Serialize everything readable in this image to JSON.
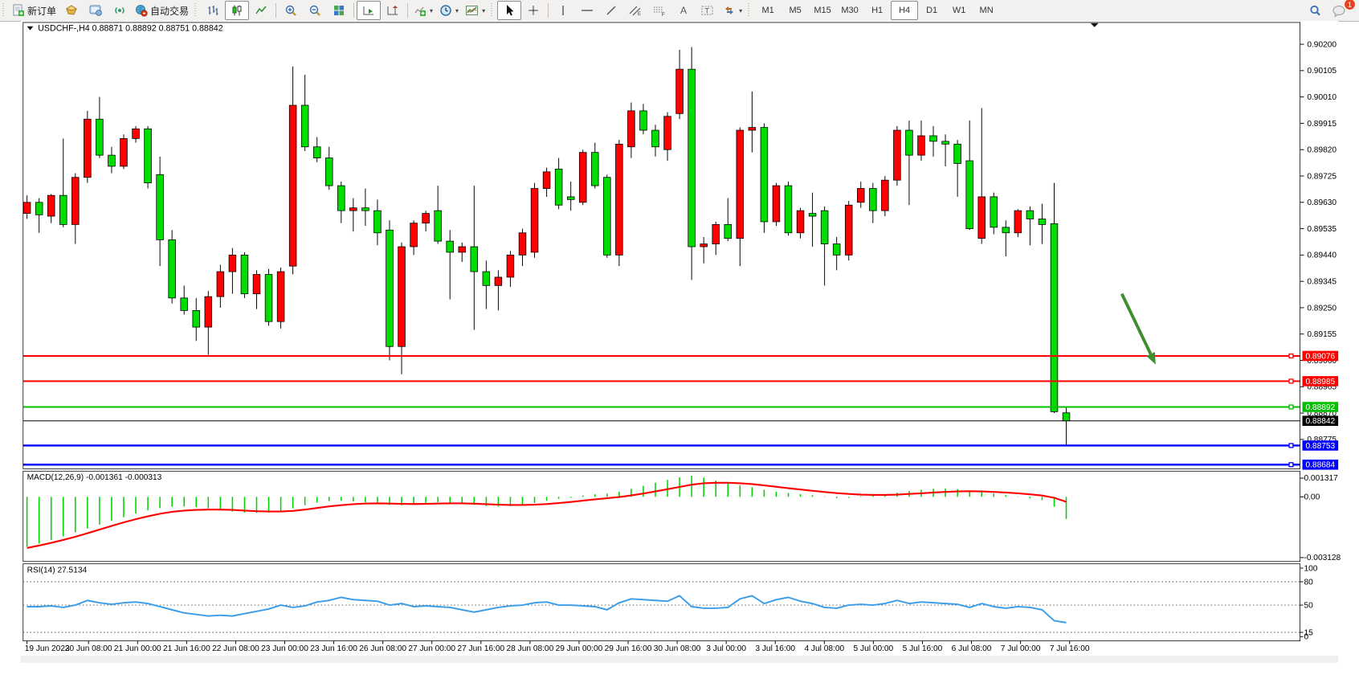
{
  "toolbar": {
    "new_order_label": "新订单",
    "auto_trading_label": "自动交易",
    "timeframes": [
      "M1",
      "M5",
      "M15",
      "M30",
      "H1",
      "H4",
      "D1",
      "W1",
      "MN"
    ],
    "selected_timeframe": "H4",
    "badge_count": "1"
  },
  "chart": {
    "symbol_period": "USDCHF-,H4",
    "ohlc_text": "0.88871 0.88892 0.88751 0.88842"
  },
  "chart_data": {
    "type": "candlestick",
    "symbol": "USDCHF",
    "period": "H4",
    "quote": {
      "open": "0.88871",
      "high": "0.88892",
      "low": "0.88751",
      "close": "0.88842"
    },
    "price_axis": {
      "tick_labels": [
        "0.90200",
        "0.90105",
        "0.90010",
        "0.89915",
        "0.89820",
        "0.89725",
        "0.89630",
        "0.89535",
        "0.89440",
        "0.89345",
        "0.89250",
        "0.89155",
        "0.89060",
        "0.88965",
        "0.88870",
        "0.88775"
      ],
      "tick_values": [
        0.902,
        0.90105,
        0.9001,
        0.89915,
        0.8982,
        0.89725,
        0.8963,
        0.89535,
        0.8944,
        0.89345,
        0.8925,
        0.89155,
        0.8906,
        0.88965,
        0.8887,
        0.88775
      ]
    },
    "date_labels": [
      "19 Jun 2023",
      "20 Jun 08:00",
      "21 Jun 00:00",
      "21 Jun 16:00",
      "22 Jun 08:00",
      "23 Jun 00:00",
      "23 Jun 16:00",
      "26 Jun 08:00",
      "27 Jun 00:00",
      "27 Jun 16:00",
      "28 Jun 08:00",
      "29 Jun 00:00",
      "29 Jun 16:00",
      "30 Jun 08:00",
      "3 Jul 00:00",
      "3 Jul 16:00",
      "4 Jul 08:00",
      "5 Jul 00:00",
      "5 Jul 16:00",
      "6 Jul 08:00",
      "7 Jul 00:00",
      "7 Jul 16:00"
    ],
    "colors": {
      "up": "#FF0000",
      "down": "#00DD00",
      "wick": "#000000",
      "macd_bar": "#00D400",
      "macd_signal": "#FF0000",
      "rsi_line": "#3B9DE8",
      "arrow": "#3E8E2E"
    },
    "candles": [
      [
        0.8959,
        0.89655,
        0.8957,
        0.8963
      ],
      [
        0.8963,
        0.89645,
        0.8952,
        0.89585
      ],
      [
        0.8958,
        0.8966,
        0.89555,
        0.89655
      ],
      [
        0.89655,
        0.8986,
        0.8954,
        0.8955
      ],
      [
        0.8955,
        0.89735,
        0.8948,
        0.8972
      ],
      [
        0.8972,
        0.8996,
        0.897,
        0.8993
      ],
      [
        0.8993,
        0.9001,
        0.8979,
        0.898
      ],
      [
        0.898,
        0.8983,
        0.89735,
        0.8976
      ],
      [
        0.8976,
        0.89875,
        0.8975,
        0.8986
      ],
      [
        0.8986,
        0.89905,
        0.89845,
        0.89895
      ],
      [
        0.89895,
        0.89905,
        0.8968,
        0.897
      ],
      [
        0.8973,
        0.89795,
        0.894,
        0.89495
      ],
      [
        0.89495,
        0.8953,
        0.89265,
        0.89285
      ],
      [
        0.89285,
        0.8933,
        0.89225,
        0.8924
      ],
      [
        0.8924,
        0.89285,
        0.8913,
        0.8918
      ],
      [
        0.8918,
        0.8931,
        0.8908,
        0.8929
      ],
      [
        0.8929,
        0.89405,
        0.8925,
        0.8938
      ],
      [
        0.8938,
        0.89465,
        0.893,
        0.8944
      ],
      [
        0.8944,
        0.8945,
        0.89285,
        0.893
      ],
      [
        0.893,
        0.89385,
        0.89245,
        0.8937
      ],
      [
        0.8937,
        0.8939,
        0.89185,
        0.892
      ],
      [
        0.892,
        0.89395,
        0.89175,
        0.8938
      ],
      [
        0.894,
        0.9012,
        0.8937,
        0.8998
      ],
      [
        0.8998,
        0.9009,
        0.89815,
        0.8983
      ],
      [
        0.8983,
        0.89865,
        0.89775,
        0.8979
      ],
      [
        0.8979,
        0.8983,
        0.89675,
        0.8969
      ],
      [
        0.8969,
        0.89705,
        0.89555,
        0.896
      ],
      [
        0.896,
        0.89645,
        0.89525,
        0.8961
      ],
      [
        0.8961,
        0.8968,
        0.89545,
        0.896
      ],
      [
        0.896,
        0.8964,
        0.89475,
        0.8952
      ],
      [
        0.8953,
        0.89565,
        0.8906,
        0.8911
      ],
      [
        0.8911,
        0.89485,
        0.8901,
        0.8947
      ],
      [
        0.8947,
        0.89565,
        0.8944,
        0.89555
      ],
      [
        0.89555,
        0.896,
        0.89525,
        0.8959
      ],
      [
        0.896,
        0.8969,
        0.8948,
        0.8949
      ],
      [
        0.8949,
        0.8953,
        0.8928,
        0.8945
      ],
      [
        0.8945,
        0.89485,
        0.89415,
        0.8947
      ],
      [
        0.8947,
        0.8969,
        0.8917,
        0.8938
      ],
      [
        0.8938,
        0.8942,
        0.89245,
        0.8933
      ],
      [
        0.8933,
        0.89385,
        0.8924,
        0.8936
      ],
      [
        0.8936,
        0.89455,
        0.89325,
        0.8944
      ],
      [
        0.8944,
        0.89535,
        0.894,
        0.8952
      ],
      [
        0.8945,
        0.897,
        0.8943,
        0.8968
      ],
      [
        0.8968,
        0.89755,
        0.8965,
        0.8974
      ],
      [
        0.8975,
        0.8979,
        0.89605,
        0.8962
      ],
      [
        0.8965,
        0.89705,
        0.896,
        0.8964
      ],
      [
        0.8963,
        0.8982,
        0.8962,
        0.8981
      ],
      [
        0.8981,
        0.89845,
        0.8968,
        0.8969
      ],
      [
        0.8972,
        0.8973,
        0.8943,
        0.8944
      ],
      [
        0.8944,
        0.89855,
        0.894,
        0.8984
      ],
      [
        0.8983,
        0.8999,
        0.8979,
        0.8996
      ],
      [
        0.8996,
        0.89985,
        0.89875,
        0.8989
      ],
      [
        0.8989,
        0.8991,
        0.89795,
        0.8983
      ],
      [
        0.8982,
        0.89955,
        0.8978,
        0.8994
      ],
      [
        0.8995,
        0.9018,
        0.8993,
        0.9011
      ],
      [
        0.9011,
        0.9019,
        0.8935,
        0.8947
      ],
      [
        0.8947,
        0.89505,
        0.8941,
        0.8948
      ],
      [
        0.8948,
        0.8956,
        0.8944,
        0.8955
      ],
      [
        0.8955,
        0.89645,
        0.8949,
        0.895
      ],
      [
        0.895,
        0.899,
        0.894,
        0.8989
      ],
      [
        0.8989,
        0.9003,
        0.8981,
        0.899
      ],
      [
        0.899,
        0.89915,
        0.8952,
        0.8956
      ],
      [
        0.8956,
        0.897,
        0.89545,
        0.8969
      ],
      [
        0.8969,
        0.89705,
        0.8951,
        0.8952
      ],
      [
        0.8952,
        0.8961,
        0.895,
        0.896
      ],
      [
        0.8959,
        0.89665,
        0.8947,
        0.8958
      ],
      [
        0.896,
        0.89615,
        0.8933,
        0.8948
      ],
      [
        0.8948,
        0.89505,
        0.89385,
        0.8944
      ],
      [
        0.8944,
        0.89635,
        0.8942,
        0.8962
      ],
      [
        0.8963,
        0.89705,
        0.8961,
        0.8968
      ],
      [
        0.8968,
        0.897,
        0.89555,
        0.896
      ],
      [
        0.896,
        0.89725,
        0.8958,
        0.8971
      ],
      [
        0.8971,
        0.89905,
        0.8969,
        0.8989
      ],
      [
        0.8989,
        0.89925,
        0.8962,
        0.898
      ],
      [
        0.898,
        0.89925,
        0.8978,
        0.8987
      ],
      [
        0.8987,
        0.89905,
        0.89795,
        0.8985
      ],
      [
        0.8985,
        0.89875,
        0.8976,
        0.8984
      ],
      [
        0.8984,
        0.89855,
        0.8965,
        0.8977
      ],
      [
        0.8978,
        0.89925,
        0.8953,
        0.89535
      ],
      [
        0.895,
        0.8997,
        0.8948,
        0.8965
      ],
      [
        0.8965,
        0.89665,
        0.89515,
        0.8954
      ],
      [
        0.8954,
        0.89565,
        0.89435,
        0.8952
      ],
      [
        0.8952,
        0.89605,
        0.89505,
        0.896
      ],
      [
        0.896,
        0.89615,
        0.89475,
        0.8957
      ],
      [
        0.8957,
        0.89625,
        0.8948,
        0.8955
      ],
      [
        0.89553,
        0.897,
        0.8887,
        0.88875
      ],
      [
        0.88871,
        0.88892,
        0.88751,
        0.88842
      ]
    ],
    "hlines": [
      {
        "price": 0.89076,
        "label": "0.89076",
        "color": "#FF0000",
        "width": 2,
        "handle": true
      },
      {
        "price": 0.88985,
        "label": "0.88985",
        "color": "#FF0000",
        "width": 2,
        "handle": true
      },
      {
        "price": 0.88892,
        "label": "0.88892",
        "color": "#00C000",
        "width": 2,
        "handle": true
      },
      {
        "price": 0.88842,
        "label": "0.88842",
        "color": "#000000",
        "width": 1,
        "handle": false
      },
      {
        "price": 0.88753,
        "label": "0.88753",
        "color": "#0000FF",
        "width": 2.5,
        "handle": true
      },
      {
        "price": 0.88684,
        "label": "0.88684",
        "color": "#0000FF",
        "width": 2.5,
        "handle": true
      }
    ],
    "arrow_annotation": {
      "from_bar": 90.6,
      "from_price": 0.893,
      "to_bar": 93.4,
      "to_price": 0.89045
    },
    "macd": {
      "label": "MACD(12,26,9) -0.001361 -0.000313",
      "axis_max_label": "0.001317",
      "axis_zero_label": "0.00",
      "axis_min_label": "-0.003128",
      "histogram": [
        -0.0031,
        -0.0029,
        -0.00268,
        -0.00245,
        -0.0022,
        -0.00196,
        -0.00172,
        -0.00148,
        -0.00125,
        -0.00102,
        -0.00082,
        -0.00068,
        -0.0006,
        -0.00058,
        -0.00062,
        -0.0007,
        -0.0008,
        -0.0009,
        -0.00096,
        -0.00098,
        -0.00096,
        -0.00088,
        -0.0007,
        -0.0005,
        -0.00034,
        -0.00024,
        -0.00022,
        -0.00026,
        -0.00032,
        -0.0004,
        -0.00048,
        -0.0005,
        -0.00044,
        -0.00036,
        -0.00032,
        -0.00034,
        -0.0004,
        -0.00048,
        -0.00055,
        -0.00058,
        -0.00056,
        -0.00048,
        -0.00036,
        -0.00022,
        -0.0001,
        -4e-05,
        6e-05,
        0.00014,
        0.00018,
        0.0003,
        0.00048,
        0.00066,
        0.00086,
        0.00104,
        0.0012,
        0.00131,
        0.00118,
        0.001,
        0.00082,
        0.0007,
        0.00058,
        0.00042,
        0.0003,
        0.00022,
        0.00014,
        8e-05,
        0.0,
        -6e-05,
        -4e-05,
        2e-05,
        8e-05,
        0.00014,
        0.00024,
        0.00034,
        0.00042,
        0.00048,
        0.0005,
        0.00046,
        0.00038,
        0.00028,
        0.00018,
        8e-05,
        0.0,
        -8e-05,
        -0.00018,
        -0.0006,
        -0.00136
      ],
      "signal": [
        -0.0032,
        -0.00305,
        -0.00288,
        -0.0027,
        -0.0025,
        -0.00228,
        -0.00205,
        -0.00182,
        -0.0016,
        -0.0014,
        -0.00122,
        -0.00106,
        -0.00094,
        -0.00086,
        -0.00082,
        -0.0008,
        -0.0008,
        -0.00082,
        -0.00086,
        -0.0009,
        -0.00092,
        -0.00092,
        -0.00088,
        -0.0008,
        -0.0007,
        -0.0006,
        -0.00052,
        -0.00046,
        -0.00042,
        -0.00041,
        -0.00042,
        -0.00044,
        -0.00045,
        -0.00044,
        -0.00042,
        -0.00041,
        -0.00041,
        -0.00043,
        -0.00046,
        -0.00049,
        -0.00051,
        -0.00051,
        -0.00049,
        -0.00045,
        -0.00039,
        -0.00032,
        -0.00024,
        -0.00016,
        -9e-05,
        -1e-05,
        9e-05,
        0.00021,
        0.00034,
        0.00048,
        0.00062,
        0.00076,
        0.00085,
        0.00088,
        0.00088,
        0.00085,
        0.0008,
        0.00072,
        0.00063,
        0.00054,
        0.00046,
        0.00038,
        0.0003,
        0.00023,
        0.00018,
        0.00014,
        0.00012,
        0.00012,
        0.00014,
        0.00018,
        0.00022,
        0.00027,
        0.00031,
        0.00034,
        0.00035,
        0.00034,
        0.00031,
        0.00027,
        0.00022,
        0.00016,
        8e-05,
        -6e-05,
        -0.00031
      ]
    },
    "rsi": {
      "label": "RSI(14) 27.5134",
      "axis_labels": [
        100,
        80,
        50,
        15,
        0
      ],
      "level_lines": [
        80,
        50,
        15
      ],
      "values": [
        48,
        48,
        49,
        47,
        50,
        56,
        53,
        51,
        53,
        54,
        52,
        48,
        44,
        40,
        38,
        36,
        37,
        36,
        39,
        42,
        45,
        50,
        47,
        49,
        54,
        56,
        60,
        57,
        56,
        55,
        50,
        52,
        48,
        49,
        48,
        47,
        44,
        41,
        44,
        47,
        49,
        50,
        53,
        54,
        50,
        50,
        49,
        48,
        44,
        53,
        58,
        57,
        56,
        55,
        62,
        48,
        46,
        46,
        47,
        58,
        62,
        52,
        57,
        60,
        55,
        52,
        47,
        46,
        50,
        51,
        50,
        52,
        56,
        52,
        54,
        53,
        52,
        51,
        47,
        52,
        48,
        46,
        48,
        47,
        44,
        30,
        27.5
      ]
    }
  }
}
